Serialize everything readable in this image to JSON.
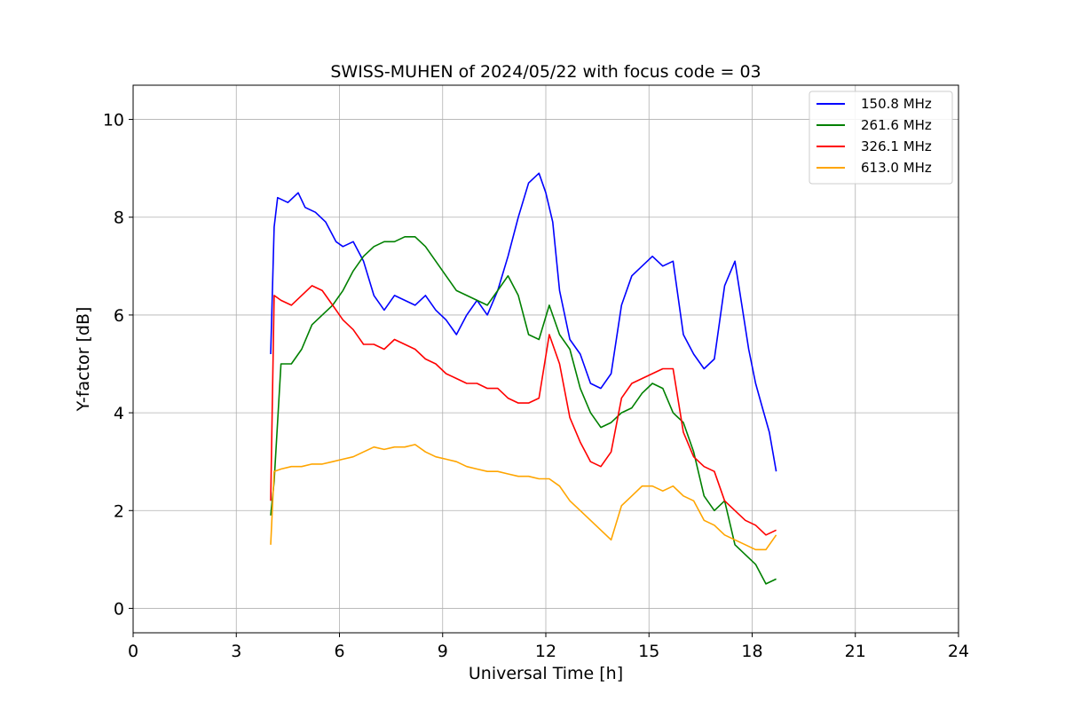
{
  "chart_data": {
    "type": "line",
    "title": "SWISS-MUHEN of 2024/05/22 with focus code = 03",
    "xlabel": "Universal Time [h]",
    "ylabel": "Y-factor [dB]",
    "xlim": [
      0,
      24
    ],
    "ylim": [
      -0.5,
      10.7
    ],
    "xticks": [
      0,
      3,
      6,
      9,
      12,
      15,
      18,
      21,
      24
    ],
    "yticks": [
      0,
      2,
      4,
      6,
      8,
      10
    ],
    "grid": true,
    "legend_position": "top-right",
    "series": [
      {
        "name": "150.8 MHz",
        "color": "#0000ff",
        "x": [
          4.0,
          4.1,
          4.2,
          4.5,
          4.8,
          5.0,
          5.3,
          5.6,
          5.9,
          6.1,
          6.4,
          6.7,
          7.0,
          7.3,
          7.6,
          7.9,
          8.2,
          8.5,
          8.8,
          9.1,
          9.4,
          9.7,
          10.0,
          10.3,
          10.6,
          10.9,
          11.2,
          11.5,
          11.8,
          12.0,
          12.2,
          12.4,
          12.7,
          13.0,
          13.3,
          13.6,
          13.9,
          14.2,
          14.5,
          14.8,
          15.1,
          15.4,
          15.7,
          16.0,
          16.3,
          16.6,
          16.9,
          17.2,
          17.5,
          17.7,
          17.9,
          18.1,
          18.3,
          18.5,
          18.7
        ],
        "y": [
          5.2,
          7.8,
          8.4,
          8.3,
          8.5,
          8.2,
          8.1,
          7.9,
          7.5,
          7.4,
          7.5,
          7.1,
          6.4,
          6.1,
          6.4,
          6.3,
          6.2,
          6.4,
          6.1,
          5.9,
          5.6,
          6.0,
          6.3,
          6.0,
          6.5,
          7.2,
          8.0,
          8.7,
          8.9,
          8.5,
          7.9,
          6.5,
          5.5,
          5.2,
          4.6,
          4.5,
          4.8,
          6.2,
          6.8,
          7.0,
          7.2,
          7.0,
          7.1,
          5.6,
          5.2,
          4.9,
          5.1,
          6.6,
          7.1,
          6.2,
          5.3,
          4.6,
          4.1,
          3.6,
          2.8
        ]
      },
      {
        "name": "261.6 MHz",
        "color": "#008000",
        "x": [
          4.0,
          4.1,
          4.3,
          4.6,
          4.9,
          5.2,
          5.5,
          5.8,
          6.1,
          6.4,
          6.7,
          7.0,
          7.3,
          7.6,
          7.9,
          8.2,
          8.5,
          8.8,
          9.1,
          9.4,
          9.7,
          10.0,
          10.3,
          10.6,
          10.9,
          11.2,
          11.5,
          11.8,
          12.1,
          12.4,
          12.7,
          13.0,
          13.3,
          13.6,
          13.9,
          14.2,
          14.5,
          14.8,
          15.1,
          15.4,
          15.7,
          16.0,
          16.3,
          16.6,
          16.9,
          17.2,
          17.5,
          17.8,
          18.1,
          18.4,
          18.7
        ],
        "y": [
          1.9,
          2.6,
          5.0,
          5.0,
          5.3,
          5.8,
          6.0,
          6.2,
          6.5,
          6.9,
          7.2,
          7.4,
          7.5,
          7.5,
          7.6,
          7.6,
          7.4,
          7.1,
          6.8,
          6.5,
          6.4,
          6.3,
          6.2,
          6.5,
          6.8,
          6.4,
          5.6,
          5.5,
          6.2,
          5.6,
          5.3,
          4.5,
          4.0,
          3.7,
          3.8,
          4.0,
          4.1,
          4.4,
          4.6,
          4.5,
          4.0,
          3.8,
          3.2,
          2.3,
          2.0,
          2.2,
          1.3,
          1.1,
          0.9,
          0.5,
          0.6
        ]
      },
      {
        "name": "326.1 MHz",
        "color": "#ff0000",
        "x": [
          4.0,
          4.1,
          4.3,
          4.6,
          4.9,
          5.2,
          5.5,
          5.8,
          6.1,
          6.4,
          6.7,
          7.0,
          7.3,
          7.6,
          7.9,
          8.2,
          8.5,
          8.8,
          9.1,
          9.4,
          9.7,
          10.0,
          10.3,
          10.6,
          10.9,
          11.2,
          11.5,
          11.8,
          12.1,
          12.4,
          12.7,
          13.0,
          13.3,
          13.6,
          13.9,
          14.2,
          14.5,
          14.8,
          15.1,
          15.4,
          15.7,
          16.0,
          16.3,
          16.6,
          16.9,
          17.2,
          17.5,
          17.8,
          18.1,
          18.4,
          18.7
        ],
        "y": [
          2.2,
          6.4,
          6.3,
          6.2,
          6.4,
          6.6,
          6.5,
          6.2,
          5.9,
          5.7,
          5.4,
          5.4,
          5.3,
          5.5,
          5.4,
          5.3,
          5.1,
          5.0,
          4.8,
          4.7,
          4.6,
          4.6,
          4.5,
          4.5,
          4.3,
          4.2,
          4.2,
          4.3,
          5.6,
          5.0,
          3.9,
          3.4,
          3.0,
          2.9,
          3.2,
          4.3,
          4.6,
          4.7,
          4.8,
          4.9,
          4.9,
          3.6,
          3.1,
          2.9,
          2.8,
          2.2,
          2.0,
          1.8,
          1.7,
          1.5,
          1.6
        ]
      },
      {
        "name": "613.0 MHz",
        "color": "#ffa500",
        "x": [
          4.0,
          4.1,
          4.3,
          4.6,
          4.9,
          5.2,
          5.5,
          5.8,
          6.1,
          6.4,
          6.7,
          7.0,
          7.3,
          7.6,
          7.9,
          8.2,
          8.5,
          8.8,
          9.1,
          9.4,
          9.7,
          10.0,
          10.3,
          10.6,
          10.9,
          11.2,
          11.5,
          11.8,
          12.1,
          12.4,
          12.7,
          13.0,
          13.3,
          13.6,
          13.9,
          14.2,
          14.5,
          14.8,
          15.1,
          15.4,
          15.7,
          16.0,
          16.3,
          16.6,
          16.9,
          17.2,
          17.5,
          17.8,
          18.1,
          18.4,
          18.7
        ],
        "y": [
          1.3,
          2.8,
          2.85,
          2.9,
          2.9,
          2.95,
          2.95,
          3.0,
          3.05,
          3.1,
          3.2,
          3.3,
          3.25,
          3.3,
          3.3,
          3.35,
          3.2,
          3.1,
          3.05,
          3.0,
          2.9,
          2.85,
          2.8,
          2.8,
          2.75,
          2.7,
          2.7,
          2.65,
          2.65,
          2.5,
          2.2,
          2.0,
          1.8,
          1.6,
          1.4,
          2.1,
          2.3,
          2.5,
          2.5,
          2.4,
          2.5,
          2.3,
          2.2,
          1.8,
          1.7,
          1.5,
          1.4,
          1.3,
          1.2,
          1.2,
          1.5
        ]
      }
    ]
  }
}
